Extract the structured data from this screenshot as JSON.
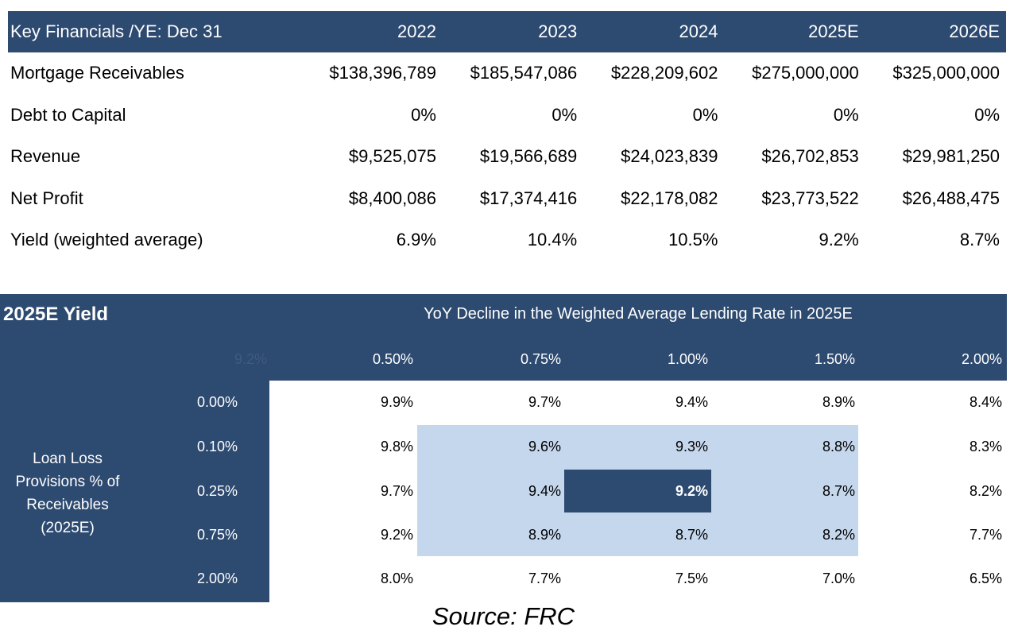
{
  "key_financials": {
    "header_label": "Key Financials /YE: Dec 31",
    "years": [
      "2022",
      "2023",
      "2024",
      "2025E",
      "2026E"
    ],
    "rows": [
      {
        "label": "Mortgage Receivables",
        "values": [
          "$138,396,789",
          "$185,547,086",
          "$228,209,602",
          "$275,000,000",
          "$325,000,000"
        ]
      },
      {
        "label": "Debt to Capital",
        "values": [
          "0%",
          "0%",
          "0%",
          "0%",
          "0%"
        ]
      },
      {
        "label": "Revenue",
        "values": [
          "$9,525,075",
          "$19,566,689",
          "$24,023,839",
          "$26,702,853",
          "$29,981,250"
        ]
      },
      {
        "label": "Net Profit",
        "values": [
          "$8,400,086",
          "$17,374,416",
          "$22,178,082",
          "$23,773,522",
          "$26,488,475"
        ]
      },
      {
        "label": "Yield (weighted average)",
        "values": [
          "6.9%",
          "10.4%",
          "10.5%",
          "9.2%",
          "8.7%"
        ]
      }
    ]
  },
  "sensitivity": {
    "title": "2025E Yield",
    "column_axis_label": "YoY Decline in the Weighted Average Lending Rate in 2025E",
    "row_axis_label_lines": [
      "Loan Loss",
      "Provisions % of",
      "Receivables",
      "(2025E)"
    ],
    "corner_value": "9.2%",
    "column_headers": [
      "0.50%",
      "0.75%",
      "1.00%",
      "1.50%",
      "2.00%"
    ],
    "row_headers": [
      "0.00%",
      "0.10%",
      "0.25%",
      "0.75%",
      "2.00%"
    ],
    "cells": [
      [
        "9.9%",
        "9.7%",
        "9.4%",
        "8.9%",
        "8.4%"
      ],
      [
        "9.8%",
        "9.6%",
        "9.3%",
        "8.8%",
        "8.3%"
      ],
      [
        "9.7%",
        "9.4%",
        "9.2%",
        "8.7%",
        "8.2%"
      ],
      [
        "9.2%",
        "8.9%",
        "8.7%",
        "8.2%",
        "7.7%"
      ],
      [
        "8.0%",
        "7.7%",
        "7.5%",
        "7.0%",
        "6.5%"
      ]
    ],
    "colors": {
      "header_bg": "#2d4a70",
      "highlight_band": "#c5d7ec",
      "base_case_bg": "#2d4a70"
    }
  },
  "source": "Source: FRC"
}
